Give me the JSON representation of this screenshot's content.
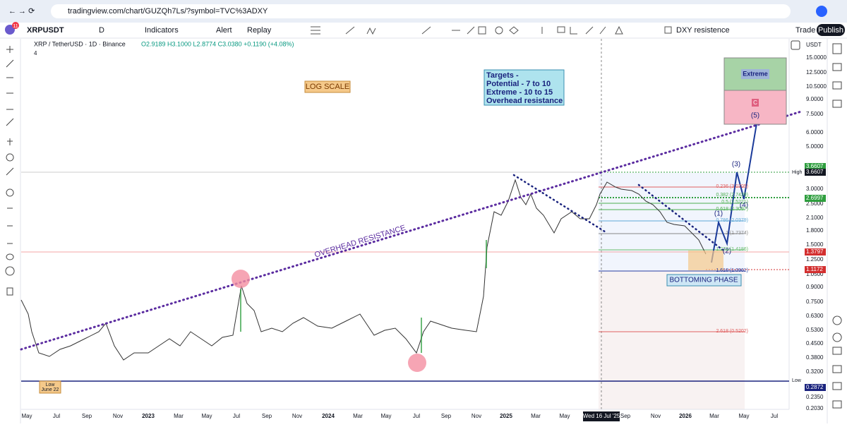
{
  "browser": {
    "url": "tradingview.com/chart/GUZQh7Ls/?symbol=TVC%3ADXY",
    "tab_count": "11"
  },
  "toolbar": {
    "symbol": "XRPUSDT",
    "interval": "D",
    "indicators": "Indicators",
    "alert": "Alert",
    "replay": "Replay",
    "layout": "DXY resistence",
    "trade": "Trade",
    "publish": "Publish"
  },
  "legend": {
    "title": "XRP / TetherUSD · 1D · Binance",
    "ohlc": "O2.9189 H3.1000 L2.8774 C3.0380 +0.1190 (+4.08%)",
    "indicator_count": "4"
  },
  "price_axis": {
    "currency": "USDT",
    "labels": [
      "15.0000",
      "12.5000",
      "10.5000",
      "9.0000",
      "7.5000",
      "6.0000",
      "5.0000",
      "3.0000",
      "2.5000",
      "2.1000",
      "1.8000",
      "1.5000",
      "1.2500",
      "1.0500",
      "0.9000",
      "0.7500",
      "0.6300",
      "0.5300",
      "0.4500",
      "0.3800",
      "0.3200",
      "0.2350",
      "0.2030"
    ],
    "badges": [
      {
        "text": "3.6607",
        "kind": "green"
      },
      {
        "text": "3.6607",
        "kind": "dark"
      },
      {
        "text": "2.6997",
        "kind": "green"
      },
      {
        "text": "1.3797",
        "kind": "red"
      },
      {
        "text": "1.1172",
        "kind": "red"
      },
      {
        "text": "0.2872",
        "kind": "navy"
      }
    ],
    "high_label": "High",
    "low_label": "Low"
  },
  "time_axis": {
    "labels": [
      "May",
      "Jul",
      "Sep",
      "Nov",
      "2023",
      "Mar",
      "May",
      "Jul",
      "Sep",
      "Nov",
      "2024",
      "Mar",
      "May",
      "Jul",
      "Sep",
      "Nov",
      "2025",
      "Mar",
      "May",
      "Wed 16 Jul '25",
      "Sep",
      "Nov",
      "2026",
      "Mar",
      "May",
      "Jul"
    ]
  },
  "annotations": {
    "log_scale": "LOG SCALE",
    "targets": [
      "Targets -",
      "Potential - 7 to 10",
      "Extreme - 10 to 15",
      "Overhead resistance"
    ],
    "extreme": "Extreme",
    "c_label": "C",
    "overhead": "OVERHEAD RESISTANCE",
    "bottoming": "BOTTOMING PHASE",
    "low_note": [
      "Low",
      "June 22"
    ],
    "waves": [
      "(1)",
      "(2)",
      "(3)",
      "(4)",
      "(5)"
    ],
    "fibs": [
      "0.236 (3.0705)",
      "0.382 (2.7429)",
      "0.5 (2.5221)",
      "0.618 (2.3097)",
      "0.786 (2.0379)",
      "1 (1.7374)",
      "1.272 (1.4186)",
      "1.618 (1.0961)",
      "2.618 (0.5202)"
    ]
  }
}
